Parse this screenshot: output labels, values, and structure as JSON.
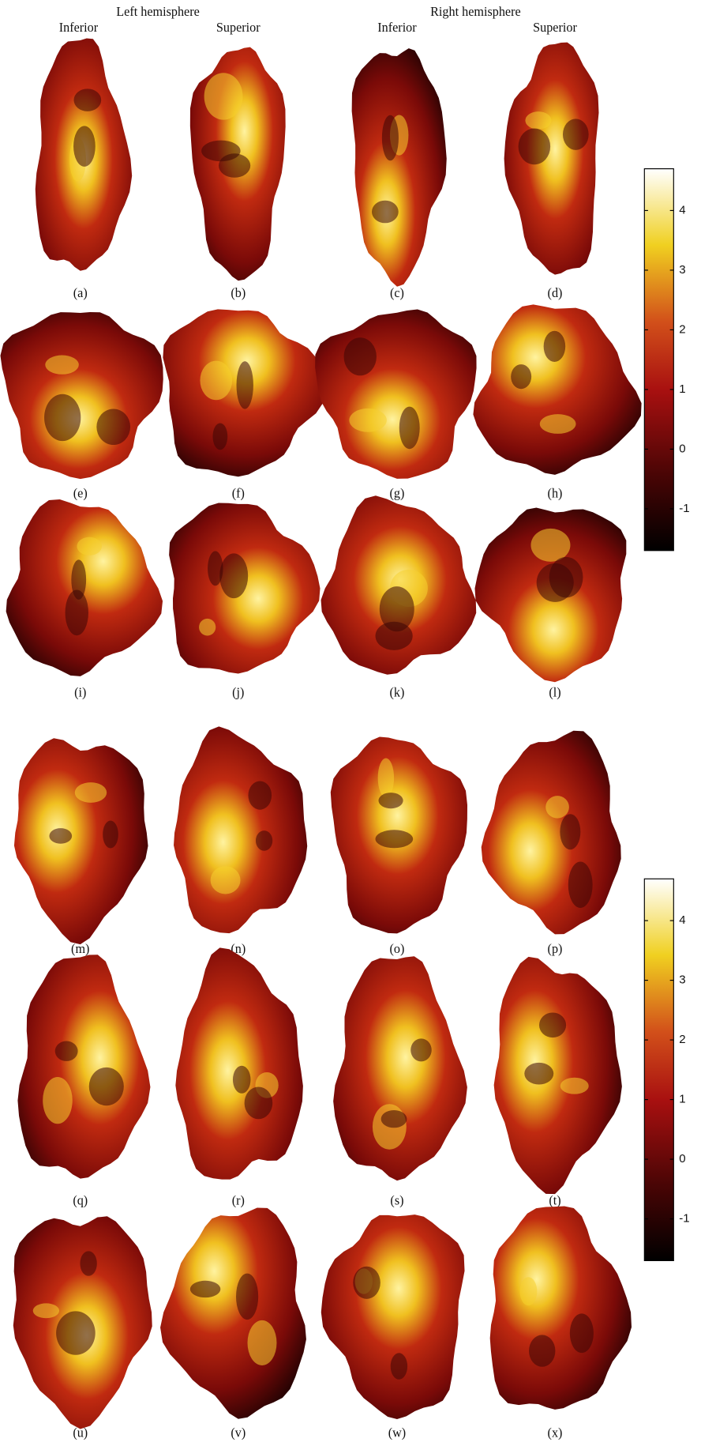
{
  "header": {
    "left": "Left hemisphere",
    "right": "Right hemisphere",
    "views": [
      "Inferior",
      "Superior",
      "Inferior",
      "Superior"
    ]
  },
  "panels": [
    "(a)",
    "(b)",
    "(c)",
    "(d)",
    "(e)",
    "(f)",
    "(g)",
    "(h)",
    "(i)",
    "(j)",
    "(k)",
    "(l)",
    "(m)",
    "(n)",
    "(o)",
    "(p)",
    "(q)",
    "(r)",
    "(s)",
    "(t)",
    "(u)",
    "(v)",
    "(w)",
    "(x)"
  ],
  "colorbars": [
    {
      "lim": [
        -1.7,
        4.7
      ],
      "ticks": [
        -1,
        0,
        1,
        2,
        3,
        4
      ]
    },
    {
      "lim": [
        -1.7,
        4.7
      ],
      "ticks": [
        -1,
        0,
        1,
        2,
        3,
        4
      ]
    }
  ]
}
